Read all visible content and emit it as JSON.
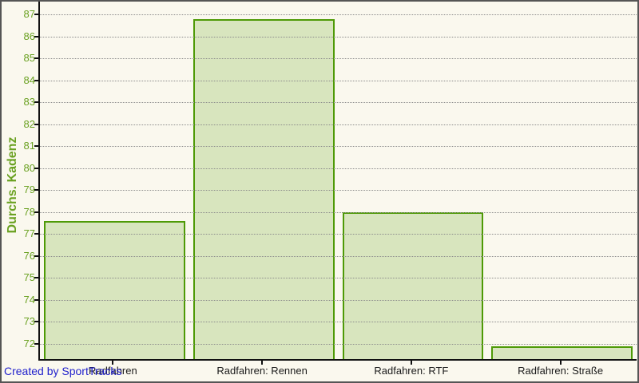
{
  "window": {
    "background": "#FAF8EE",
    "border_color": "#555555"
  },
  "footer": {
    "credit_text": "Created by SportTracks",
    "color": "#2222CC"
  },
  "chart_data": {
    "type": "bar",
    "title": "",
    "xlabel": "",
    "ylabel": "Durchs. Kadenz",
    "categories": [
      "Radfahren",
      "Radfahren: Rennen",
      "Radfahren: RTF",
      "Radfahren: Straße"
    ],
    "values": [
      77.6,
      86.8,
      78.0,
      71.9
    ],
    "ylim": [
      71.3,
      87.6
    ],
    "yticks": [
      72,
      73,
      74,
      75,
      76,
      77,
      78,
      79,
      80,
      81,
      82,
      83,
      84,
      85,
      86,
      87
    ],
    "grid": "horizontal-dotted",
    "legend_position": "none",
    "colors": {
      "bar_fill": "#D8E5BE",
      "bar_border": "#4E9A06",
      "tick_text": "#6AA121",
      "axis_title_text": "#6AA121",
      "category_text": "#1A1A1A",
      "gridline": "#8C8C8C",
      "axis_line": "#111111",
      "credit_text": "#2222CC"
    }
  }
}
